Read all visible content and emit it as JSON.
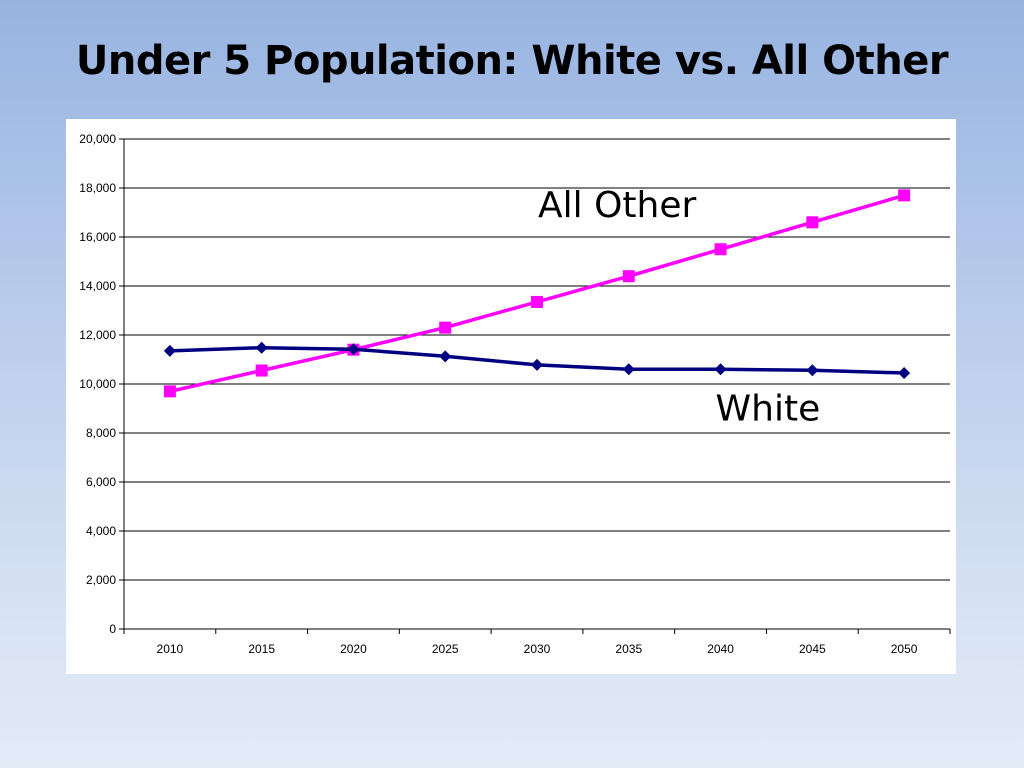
{
  "slide": {
    "title": "Under 5 Population: White vs. All Other"
  },
  "chart_data": {
    "type": "line",
    "title": "Under 5 Population: White vs. All Other",
    "x": [
      "2010",
      "2015",
      "2020",
      "2025",
      "2030",
      "2035",
      "2040",
      "2045",
      "2050"
    ],
    "y_ticks": [
      "0",
      "2,000",
      "4,000",
      "6,000",
      "8,000",
      "10,000",
      "12,000",
      "14,000",
      "16,000",
      "18,000",
      "20,000"
    ],
    "ylim": [
      0,
      20000
    ],
    "grid": true,
    "legend": "none",
    "series": [
      {
        "name": "All Other",
        "color": "#ff00ff",
        "marker": "square",
        "values": [
          9700,
          10550,
          11400,
          12300,
          13350,
          14400,
          15500,
          16600,
          17700
        ]
      },
      {
        "name": "White",
        "color": "#000080",
        "marker": "diamond",
        "values": [
          11350,
          11480,
          11420,
          11130,
          10780,
          10600,
          10600,
          10560,
          10450
        ]
      }
    ]
  }
}
